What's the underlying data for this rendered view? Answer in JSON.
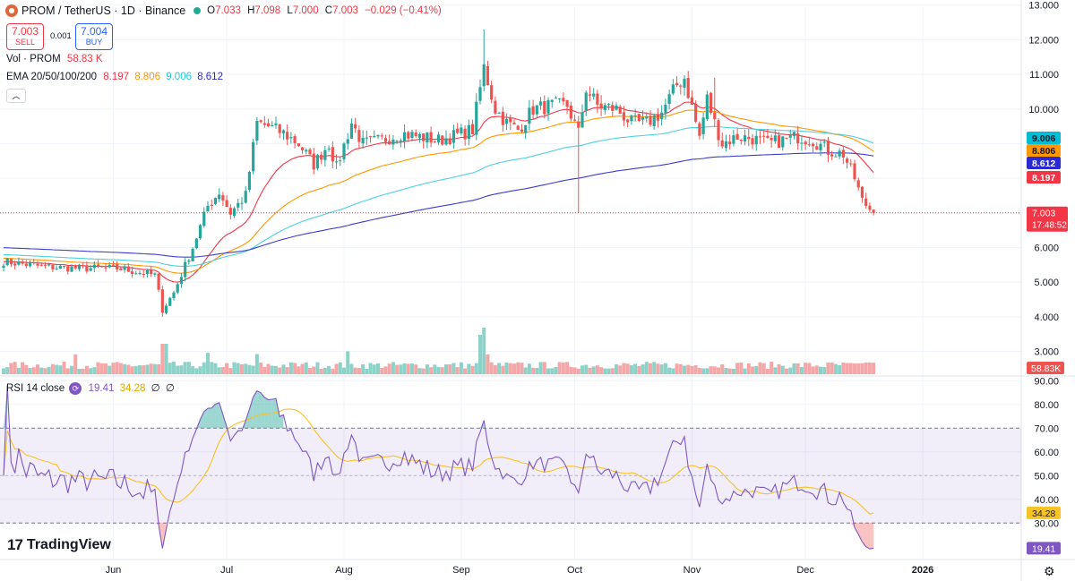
{
  "header": {
    "title": "PROM / TetherUS · 1D · Binance",
    "ohlc": [
      {
        "k": "O",
        "v": "7.033"
      },
      {
        "k": "H",
        "v": "7.098"
      },
      {
        "k": "L",
        "v": "7.000"
      },
      {
        "k": "C",
        "v": "7.003"
      },
      {
        "k": "",
        "v": "−0.029 (−0.41%)"
      }
    ]
  },
  "trade": {
    "sell_price": "7.003",
    "sell_label": "SELL",
    "spread": "0.001",
    "buy_price": "7.004",
    "buy_label": "BUY"
  },
  "indicators": {
    "vol_label": "Vol · PROM",
    "vol_value": "58.83 K",
    "ema_label": "EMA 20/50/100/200",
    "ema_values": [
      "8.197",
      "8.806",
      "9.006",
      "8.612"
    ],
    "rsi_label": "RSI 14 close",
    "rsi_values": [
      "19.41",
      "34.28",
      "∅",
      "∅"
    ]
  },
  "branding": {
    "logo_text": "TradingView",
    "logo_mark": "17"
  },
  "colors": {
    "up": "#26a69a",
    "down": "#ef5350",
    "ema20": "#f23645",
    "ema50": "#ff9800",
    "ema100": "#4dd0e1",
    "ema200": "#3d3dcc",
    "rsi": "#7e57c2",
    "rsi_ma": "#f7c325",
    "vol_up": "#8cd2c8",
    "vol_down": "#f5a6a6"
  },
  "chart_data": [
    {
      "type": "candlestick",
      "title": "PROM / TetherUS · 1D · Binance",
      "x_labels": [
        "Jun",
        "Jul",
        "Aug",
        "Sep",
        "Oct",
        "Nov",
        "Dec",
        "2026"
      ],
      "x_label_days": [
        29,
        59,
        90,
        121,
        151,
        182,
        212,
        243
      ],
      "x_range_days": [
        0,
        270
      ],
      "ylim": [
        2.6,
        13.2
      ],
      "y_ticks": [
        "3.000",
        "4.000",
        "5.000",
        "6.000",
        "7.000",
        "8.000",
        "9.000",
        "10.000",
        "11.000",
        "12.000",
        "13.000"
      ],
      "last_price": "7.003",
      "countdown": "17:48:52",
      "close_anchors": [
        [
          0,
          5.6
        ],
        [
          10,
          5.45
        ],
        [
          20,
          5.4
        ],
        [
          30,
          5.4
        ],
        [
          40,
          5.2
        ],
        [
          42,
          4.2
        ],
        [
          45,
          4.7
        ],
        [
          50,
          6.0
        ],
        [
          54,
          7.2
        ],
        [
          57,
          7.6
        ],
        [
          60,
          7.0
        ],
        [
          64,
          7.5
        ],
        [
          67,
          9.6
        ],
        [
          70,
          9.5
        ],
        [
          74,
          9.3
        ],
        [
          78,
          9.0
        ],
        [
          82,
          8.4
        ],
        [
          86,
          9.0
        ],
        [
          88,
          8.3
        ],
        [
          92,
          9.6
        ],
        [
          95,
          9.0
        ],
        [
          100,
          9.1
        ],
        [
          105,
          9.3
        ],
        [
          110,
          9.2
        ],
        [
          115,
          9.1
        ],
        [
          120,
          9.25
        ],
        [
          124,
          9.4
        ],
        [
          127,
          11.2
        ],
        [
          130,
          10.0
        ],
        [
          133,
          9.6
        ],
        [
          136,
          9.4
        ],
        [
          140,
          10.0
        ],
        [
          145,
          10.1
        ],
        [
          149,
          10.1
        ],
        [
          152,
          9.3
        ],
        [
          154,
          10.6
        ],
        [
          157,
          10.1
        ],
        [
          162,
          10.0
        ],
        [
          166,
          9.6
        ],
        [
          170,
          9.6
        ],
        [
          174,
          9.9
        ],
        [
          178,
          10.7
        ],
        [
          180,
          10.9
        ],
        [
          184,
          9.2
        ],
        [
          186,
          10.3
        ],
        [
          188,
          9.6
        ],
        [
          190,
          9.0
        ],
        [
          194,
          9.2
        ],
        [
          198,
          9.15
        ],
        [
          202,
          9.0
        ],
        [
          206,
          9.1
        ],
        [
          210,
          9.2
        ],
        [
          214,
          9.1
        ],
        [
          218,
          8.8
        ],
        [
          222,
          8.7
        ],
        [
          225,
          8.0
        ],
        [
          227,
          7.35
        ],
        [
          230,
          7.0
        ]
      ],
      "ema_series": [
        {
          "name": "EMA 20",
          "last": "8.197"
        },
        {
          "name": "EMA 50",
          "last": "8.806"
        },
        {
          "name": "EMA 100",
          "last": "9.006"
        },
        {
          "name": "EMA 200",
          "last": "8.612"
        }
      ]
    },
    {
      "type": "bar",
      "title": "Vol · PROM",
      "last_value": "58.83K",
      "note": "volume histogram"
    },
    {
      "type": "line",
      "title": "RSI 14 close",
      "ylim": [
        15,
        92
      ],
      "y_ticks": [
        "30.00",
        "40.00",
        "50.00",
        "60.00",
        "70.00",
        "80.00",
        "90.00"
      ],
      "overbought": 70,
      "oversold": 30,
      "series": [
        {
          "name": "RSI 14",
          "last": "19.41"
        },
        {
          "name": "RSI MA",
          "last": "34.28"
        }
      ]
    }
  ]
}
